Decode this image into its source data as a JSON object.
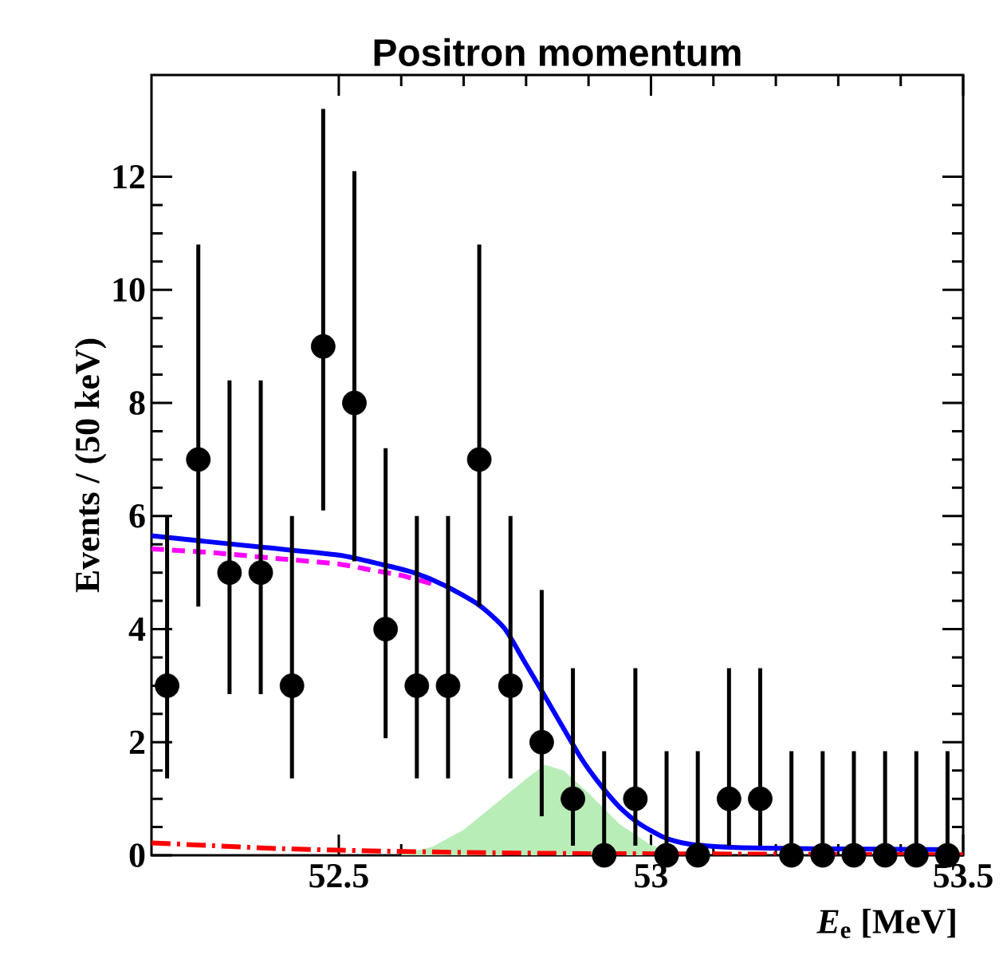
{
  "chart_data": {
    "type": "scatter",
    "title": "Positron momentum",
    "xlabel": "*E*$_{e}$ [MeV]",
    "ylabel": "Events / (50 keV)",
    "xlim": [
      52.2,
      53.5
    ],
    "ylim": [
      0,
      13.8
    ],
    "xticks": [
      52.5,
      53,
      53.5
    ],
    "yticks": [
      0,
      2,
      4,
      6,
      8,
      10,
      12
    ],
    "series": [
      {
        "type": "area",
        "color": "#b8edb8",
        "x": [
          52.6,
          52.65,
          52.7,
          52.75,
          52.8,
          52.83,
          52.86,
          52.9,
          52.95,
          53.0,
          53.05
        ],
        "values": [
          0.02,
          0.15,
          0.45,
          0.9,
          1.35,
          1.6,
          1.5,
          1.1,
          0.55,
          0.18,
          0.03
        ]
      },
      {
        "type": "line",
        "color": "#ff0000",
        "line_style": "dashdot",
        "x": [
          52.2,
          52.3,
          52.4,
          52.5,
          52.7,
          52.9,
          53.2,
          53.5
        ],
        "values": [
          0.22,
          0.17,
          0.12,
          0.09,
          0.05,
          0.03,
          0.02,
          0.01
        ]
      },
      {
        "type": "line",
        "color": "#ff00ff",
        "line_style": "dashed",
        "x": [
          52.2,
          52.3,
          52.4,
          52.5,
          52.55,
          52.6,
          52.65
        ],
        "values": [
          5.42,
          5.35,
          5.25,
          5.15,
          5.05,
          4.95,
          4.8
        ]
      },
      {
        "type": "line",
        "color": "#0000ff",
        "line_style": "solid",
        "x": [
          52.2,
          52.367,
          52.5,
          52.57,
          52.62,
          52.67,
          52.724,
          52.765,
          52.796,
          52.827,
          52.857,
          52.888,
          52.918,
          52.949,
          52.98,
          53.02,
          53.06,
          53.13,
          53.23,
          53.49
        ],
        "values": [
          5.65,
          5.46,
          5.31,
          5.14,
          5.0,
          4.77,
          4.43,
          4.02,
          3.45,
          2.87,
          2.3,
          1.72,
          1.26,
          0.86,
          0.57,
          0.32,
          0.2,
          0.14,
          0.12,
          0.1
        ]
      },
      {
        "color": "#000000",
        "marker": "circle",
        "x": [
          52.225,
          52.275,
          52.325,
          52.375,
          52.425,
          52.475,
          52.525,
          52.575,
          52.625,
          52.675,
          52.725,
          52.775,
          52.825,
          52.875,
          52.925,
          52.975,
          53.025,
          53.075,
          53.125,
          53.175,
          53.225,
          53.275,
          53.325,
          53.375,
          53.425,
          53.475
        ],
        "values": [
          3,
          7,
          5,
          5,
          3,
          9,
          8,
          4,
          3,
          3,
          7,
          3,
          2,
          1,
          0,
          1,
          0,
          0,
          1,
          1,
          0,
          0,
          0,
          0,
          0,
          0
        ],
        "errors": [
          [
            1.36,
            6.0
          ],
          [
            4.4,
            10.8
          ],
          [
            2.85,
            8.4
          ],
          [
            2.85,
            8.4
          ],
          [
            1.36,
            6.0
          ],
          [
            6.1,
            13.2
          ],
          [
            5.2,
            12.1
          ],
          [
            2.07,
            7.2
          ],
          [
            1.36,
            6.0
          ],
          [
            1.36,
            6.0
          ],
          [
            4.4,
            10.8
          ],
          [
            1.36,
            6.0
          ],
          [
            0.69,
            4.69
          ],
          [
            0.17,
            3.31
          ],
          [
            0,
            1.84
          ],
          [
            0.17,
            3.31
          ],
          [
            0,
            1.84
          ],
          [
            0,
            1.84
          ],
          [
            0.17,
            3.31
          ],
          [
            0.17,
            3.31
          ],
          [
            0,
            1.84
          ],
          [
            0,
            1.84
          ],
          [
            0,
            1.84
          ],
          [
            0,
            1.84
          ],
          [
            0,
            1.84
          ],
          [
            0,
            1.84
          ]
        ]
      }
    ]
  }
}
